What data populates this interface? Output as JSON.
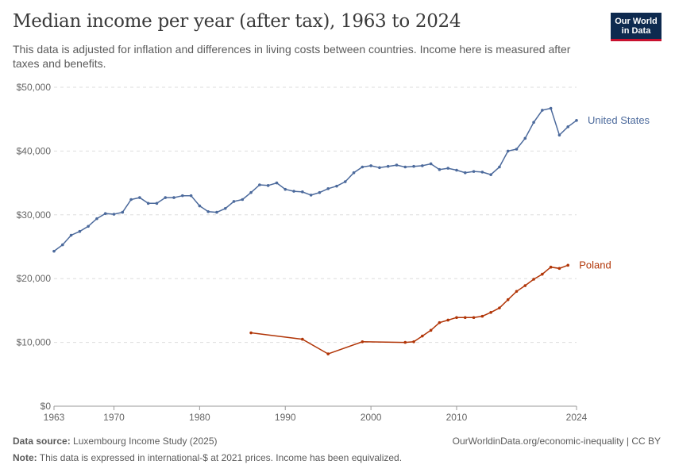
{
  "header": {
    "title": "Median income per year (after tax), 1963 to 2024",
    "subtitle": "This data is adjusted for inflation and differences in living costs between countries. Income here is measured after taxes and benefits."
  },
  "logo": {
    "line1": "Our World",
    "line2": "in Data",
    "bg": "#0e2a4f",
    "accent": "#c8102e"
  },
  "footer": {
    "source_label": "Data source:",
    "source_text": "Luxembourg Income Study (2025)",
    "link_text": "OurWorldinData.org/economic-inequality | CC BY",
    "note_label": "Note:",
    "note_text": "This data is expressed in international-$ at 2021 prices. Income has been equivalized."
  },
  "chart_data": {
    "type": "line",
    "title": "Median income per year (after tax), 1963 to 2024",
    "xlim": [
      1963,
      2024
    ],
    "ylim": [
      0,
      50000
    ],
    "x_ticks": [
      1963,
      1970,
      1980,
      1990,
      2000,
      2010,
      2024
    ],
    "y_ticks": [
      {
        "value": 0,
        "label": "$0"
      },
      {
        "value": 10000,
        "label": "$10,000"
      },
      {
        "value": 20000,
        "label": "$20,000"
      },
      {
        "value": 30000,
        "label": "$30,000"
      },
      {
        "value": 40000,
        "label": "$40,000"
      },
      {
        "value": 50000,
        "label": "$50,000"
      }
    ],
    "grid": true,
    "legend": "inline-right",
    "series": [
      {
        "name": "United States",
        "color": "#4c6a9c",
        "x": [
          1963,
          1964,
          1965,
          1966,
          1967,
          1968,
          1969,
          1970,
          1971,
          1972,
          1973,
          1974,
          1975,
          1976,
          1977,
          1978,
          1979,
          1980,
          1981,
          1982,
          1983,
          1984,
          1985,
          1986,
          1987,
          1988,
          1989,
          1990,
          1991,
          1992,
          1993,
          1994,
          1995,
          1996,
          1997,
          1998,
          1999,
          2000,
          2001,
          2002,
          2003,
          2004,
          2005,
          2006,
          2007,
          2008,
          2009,
          2010,
          2011,
          2012,
          2013,
          2014,
          2015,
          2016,
          2017,
          2018,
          2019,
          2020,
          2021,
          2022,
          2023,
          2024
        ],
        "y": [
          24300,
          25300,
          26800,
          27400,
          28200,
          29400,
          30200,
          30100,
          30400,
          32400,
          32700,
          31800,
          31800,
          32700,
          32700,
          33000,
          33000,
          31400,
          30500,
          30400,
          31000,
          32100,
          32400,
          33500,
          34700,
          34600,
          35000,
          34000,
          33700,
          33600,
          33100,
          33500,
          34100,
          34500,
          35200,
          36600,
          37500,
          37700,
          37400,
          37600,
          37800,
          37500,
          37600,
          37700,
          38000,
          37100,
          37300,
          37000,
          36600,
          36800,
          36700,
          36300,
          37500,
          40000,
          40300,
          42000,
          44500,
          46400,
          46700,
          42500,
          43800,
          44800
        ]
      },
      {
        "name": "Poland",
        "color": "#b13507",
        "x": [
          1986,
          1992,
          1995,
          1999,
          2004,
          2005,
          2006,
          2007,
          2008,
          2009,
          2010,
          2011,
          2012,
          2013,
          2014,
          2015,
          2016,
          2017,
          2018,
          2019,
          2020,
          2021,
          2022,
          2023
        ],
        "y": [
          11500,
          10500,
          8200,
          10100,
          10000,
          10100,
          11000,
          11900,
          13100,
          13500,
          13900,
          13900,
          13900,
          14100,
          14700,
          15400,
          16700,
          18000,
          18900,
          19900,
          20700,
          21800,
          21600,
          22100
        ]
      }
    ]
  }
}
